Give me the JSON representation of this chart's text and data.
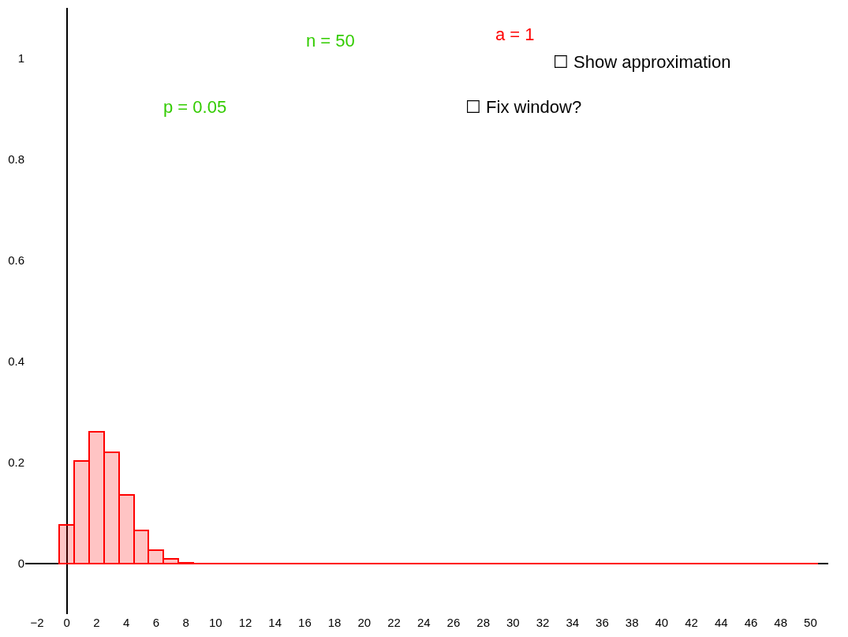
{
  "chart_data": {
    "type": "histogram",
    "bins": [
      -0.5,
      0.5,
      1.5,
      2.5,
      3.5,
      4.5,
      5.5,
      6.5,
      7.5,
      8.5,
      9.5,
      10.5,
      11.5,
      12.5,
      13.5,
      14.5,
      15.5,
      16.5,
      17.5,
      18.5,
      19.5,
      20.5,
      21.5,
      22.5,
      23.5,
      24.5,
      25.5,
      26.5,
      27.5,
      28.5,
      29.5,
      30.5,
      31.5,
      32.5,
      33.5,
      34.5,
      35.5,
      36.5,
      37.5,
      38.5,
      39.5,
      40.5,
      41.5,
      42.5,
      43.5,
      44.5,
      45.5,
      46.5,
      47.5,
      48.5,
      49.5,
      50.5
    ],
    "values": [
      0.077,
      0.203,
      0.261,
      0.22,
      0.136,
      0.066,
      0.026,
      0.009,
      0.002,
      0,
      0,
      0,
      0,
      0,
      0,
      0,
      0,
      0,
      0,
      0,
      0,
      0,
      0,
      0,
      0,
      0,
      0,
      0,
      0,
      0,
      0,
      0,
      0,
      0,
      0,
      0,
      0,
      0,
      0,
      0,
      0,
      0,
      0,
      0,
      0,
      0,
      0,
      0,
      0,
      0,
      0
    ],
    "color": "#ff0000",
    "xlim": [
      -2.8,
      51.2
    ],
    "ylim": [
      -0.1,
      1.1
    ],
    "xticks": [
      {
        "value": -2,
        "label": "−2"
      },
      0,
      2,
      4,
      6,
      8,
      10,
      12,
      14,
      16,
      18,
      20,
      22,
      24,
      26,
      28,
      30,
      32,
      34,
      36,
      38,
      40,
      42,
      44,
      46,
      48,
      50
    ],
    "yticks": [
      0,
      0.2,
      0.4,
      0.6,
      0.8,
      1
    ],
    "annotations": [
      "n = 50",
      "a = 1",
      "p = 0.05",
      "☐ Fix window?",
      "☐ Show approximation"
    ]
  }
}
